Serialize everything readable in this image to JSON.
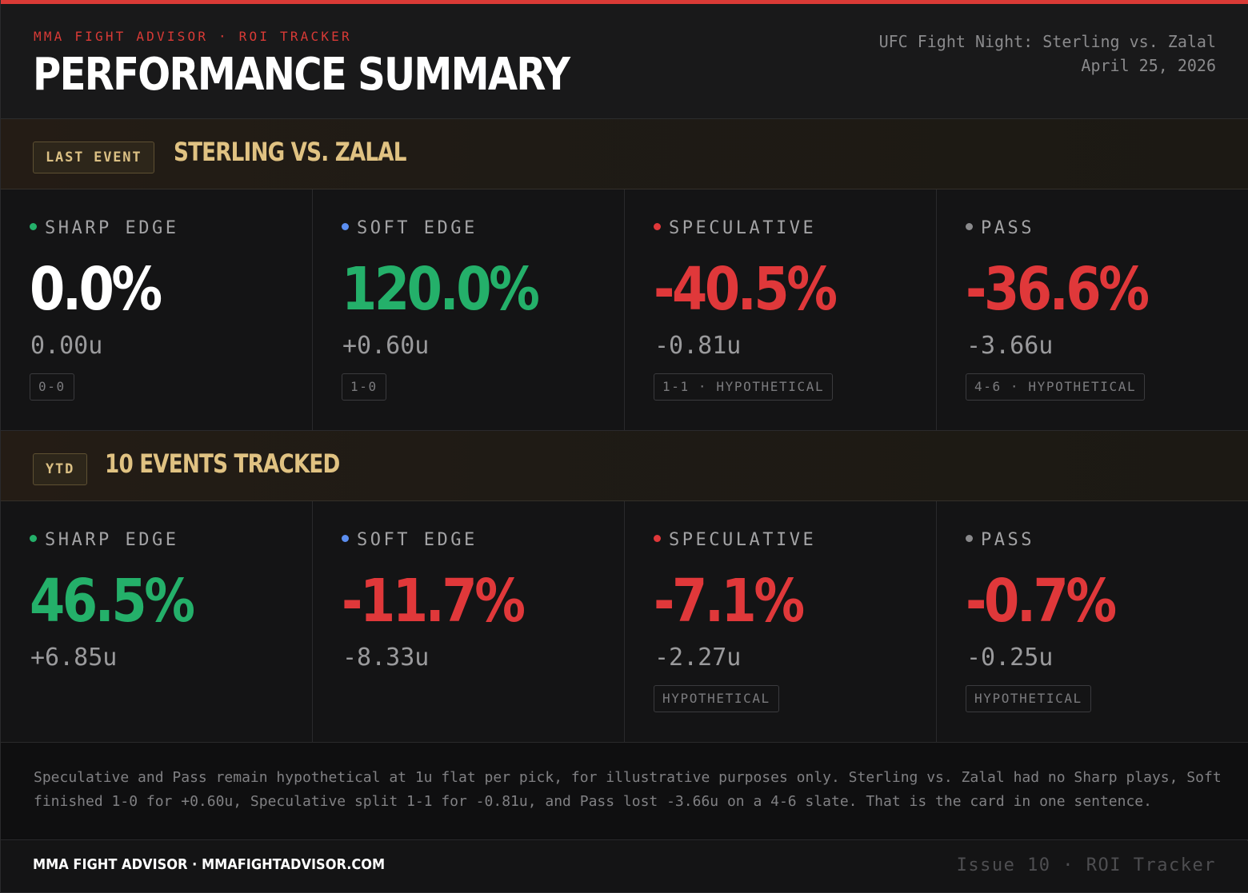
{
  "header": {
    "kicker": "MMA FIGHT ADVISOR · ROI TRACKER",
    "title": "PERFORMANCE SUMMARY",
    "event_name": "UFC Fight Night: Sterling vs. Zalal",
    "event_date": "April 25, 2026"
  },
  "colors": {
    "accent": "#d93a36",
    "positive": "#24b06a",
    "negative": "#e0383a",
    "neutral": "#ffffff",
    "gold": "#e0c282",
    "sharp_dot": "#24b06a",
    "soft_dot": "#5b8ef0",
    "speculative_dot": "#e0383a",
    "pass_dot": "#8a8a8c"
  },
  "last_event": {
    "tag": "LAST EVENT",
    "title": "STERLING VS. ZALAL",
    "cards": [
      {
        "category": "SHARP EDGE",
        "roi": "0.0%",
        "units": "0.00u",
        "badge": "0-0",
        "tone": "zero"
      },
      {
        "category": "SOFT EDGE",
        "roi": "120.0%",
        "units": "+0.60u",
        "badge": "1-0",
        "tone": "pos"
      },
      {
        "category": "SPECULATIVE",
        "roi": "-40.5%",
        "units": "-0.81u",
        "badge": "1-1 · HYPOTHETICAL",
        "tone": "neg"
      },
      {
        "category": "PASS",
        "roi": "-36.6%",
        "units": "-3.66u",
        "badge": "4-6 · HYPOTHETICAL",
        "tone": "neg"
      }
    ]
  },
  "ytd": {
    "tag": "YTD",
    "title": "10 EVENTS TRACKED",
    "cards": [
      {
        "category": "SHARP EDGE",
        "roi": "46.5%",
        "units": "+6.85u",
        "badge": "",
        "tone": "pos"
      },
      {
        "category": "SOFT EDGE",
        "roi": "-11.7%",
        "units": "-8.33u",
        "badge": "",
        "tone": "neg"
      },
      {
        "category": "SPECULATIVE",
        "roi": "-7.1%",
        "units": "-2.27u",
        "badge": "HYPOTHETICAL",
        "tone": "neg"
      },
      {
        "category": "PASS",
        "roi": "-0.7%",
        "units": "-0.25u",
        "badge": "HYPOTHETICAL",
        "tone": "neg"
      }
    ]
  },
  "note": "Speculative and Pass remain hypothetical at 1u flat per pick, for illustrative purposes only. Sterling vs. Zalal had no Sharp plays, Soft finished 1-0 for +0.60u, Speculative split 1-1 for -0.81u, and Pass lost -3.66u on a 4-6 slate. That is the card in one sentence.",
  "footer": {
    "brand": "MMA FIGHT ADVISOR · MMAFIGHTADVISOR.COM",
    "issue": "Issue 10 · ROI Tracker"
  }
}
